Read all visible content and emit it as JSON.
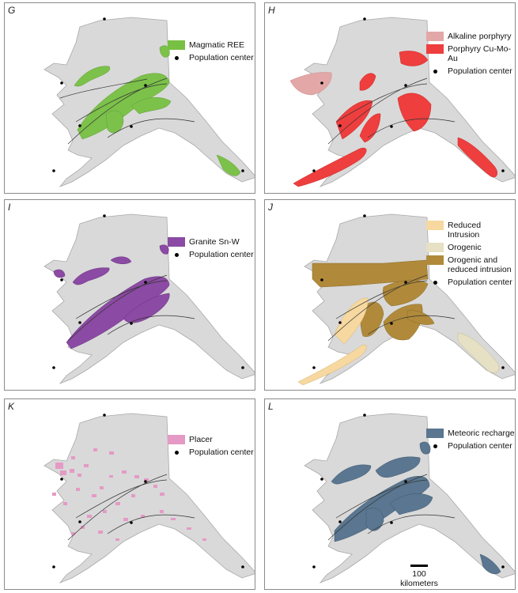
{
  "panels": [
    {
      "letter": "G",
      "legend": [
        {
          "type": "swatch",
          "label": "Magmatic REE",
          "color": "#78c043"
        },
        {
          "type": "dot",
          "label": "Population center"
        }
      ]
    },
    {
      "letter": "H",
      "legend": [
        {
          "type": "swatch",
          "label": "Alkaline porphyry",
          "color": "#e3a7a7"
        },
        {
          "type": "swatch",
          "label": "Porphyry Cu-Mo-Au",
          "color": "#ee3e3e"
        },
        {
          "type": "dot",
          "label": "Population center"
        }
      ]
    },
    {
      "letter": "I",
      "legend": [
        {
          "type": "swatch",
          "label": "Granite Sn-W",
          "color": "#8b4aa3"
        },
        {
          "type": "dot",
          "label": "Population center"
        }
      ]
    },
    {
      "letter": "J",
      "legend": [
        {
          "type": "swatch",
          "label": "Reduced Intrusion",
          "color": "#f6d8a0"
        },
        {
          "type": "swatch",
          "label": "Orogenic",
          "color": "#e6e0c4"
        },
        {
          "type": "swatch",
          "label": "Orogenic and reduced intrusion",
          "color": "#b08a3a"
        },
        {
          "type": "dot",
          "label": "Population center"
        }
      ]
    },
    {
      "letter": "K",
      "legend": [
        {
          "type": "swatch",
          "label": "Placer",
          "color": "#e59ac5"
        },
        {
          "type": "dot",
          "label": "Population center"
        }
      ]
    },
    {
      "letter": "L",
      "legend": [
        {
          "type": "swatch",
          "label": "Meteoric recharge",
          "color": "#5a7690"
        },
        {
          "type": "dot",
          "label": "Population center"
        }
      ]
    }
  ],
  "scale_bar": {
    "label": "100 kilometers"
  }
}
